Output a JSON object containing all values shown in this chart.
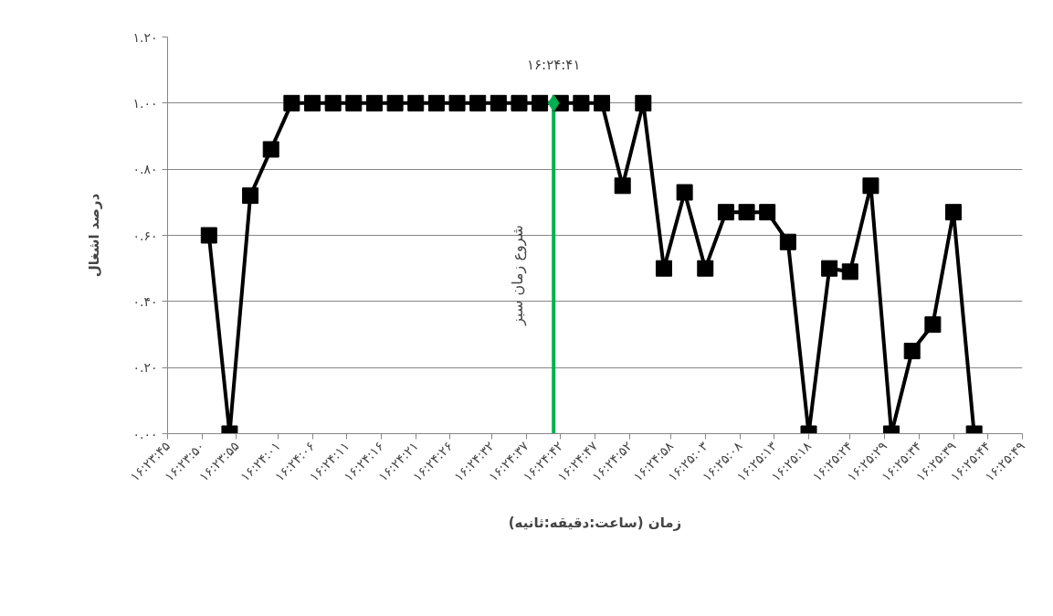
{
  "chart_data": {
    "type": "line",
    "xlabel": "زمان (ساعت:دقیقه:ثانیه)",
    "ylabel": "درصد اشغال",
    "x": [
      16.3975,
      16.398333,
      16.399167,
      16.4,
      16.400833,
      16.401667,
      16.4025,
      16.403333,
      16.404167,
      16.405,
      16.405833,
      16.406667,
      16.4075,
      16.408333,
      16.409167,
      16.41,
      16.410833,
      16.411667,
      16.4125,
      16.413333,
      16.414167,
      16.415,
      16.415833,
      16.416667,
      16.4175,
      16.418333,
      16.419167,
      16.42,
      16.420833,
      16.421667,
      16.4225,
      16.423333,
      16.424167,
      16.425,
      16.425833,
      16.426667,
      16.4275,
      16.428333
    ],
    "series": [
      {
        "color": "#000000",
        "values": [
          0.6,
          0.0,
          0.72,
          0.86,
          1.0,
          1.0,
          1.0,
          1.0,
          1.0,
          1.0,
          1.0,
          1.0,
          1.0,
          1.0,
          1.0,
          1.0,
          1.0,
          1.0,
          1.0,
          1.0,
          0.75,
          1.0,
          0.5,
          0.73,
          0.5,
          0.67,
          0.67,
          0.67,
          0.58,
          0.0,
          0.5,
          0.49,
          0.75,
          0.0,
          0.25,
          0.33,
          0.67,
          0.0
        ]
      }
    ],
    "xlim": [
      16.395833,
      16.430278
    ],
    "xticks": [
      {
        "value": 16.395833,
        "label": "۱۶:۲۳:۴۵"
      },
      {
        "value": 16.397222,
        "label": "۱۶:۲۳:۵۰"
      },
      {
        "value": 16.398611,
        "label": "۱۶:۲۳:۵۵"
      },
      {
        "value": 16.400278,
        "label": "۱۶:۲۴:۰۱"
      },
      {
        "value": 16.401667,
        "label": "۱۶:۲۴:۰۶"
      },
      {
        "value": 16.403056,
        "label": "۱۶:۲۴:۱۱"
      },
      {
        "value": 16.404444,
        "label": "۱۶:۲۴:۱۶"
      },
      {
        "value": 16.405833,
        "label": "۱۶:۲۴:۲۱"
      },
      {
        "value": 16.407222,
        "label": "۱۶:۲۴:۲۶"
      },
      {
        "value": 16.408889,
        "label": "۱۶:۲۴:۳۲"
      },
      {
        "value": 16.410278,
        "label": "۱۶:۲۴:۳۷"
      },
      {
        "value": 16.411667,
        "label": "۱۶:۲۴:۴۲"
      },
      {
        "value": 16.413056,
        "label": "۱۶:۲۴:۴۷"
      },
      {
        "value": 16.414444,
        "label": "۱۶:۲۴:۵۲"
      },
      {
        "value": 16.416111,
        "label": "۱۶:۲۴:۵۸"
      },
      {
        "value": 16.4175,
        "label": "۱۶:۲۵:۰۳"
      },
      {
        "value": 16.418889,
        "label": "۱۶:۲۵:۰۸"
      },
      {
        "value": 16.420278,
        "label": "۱۶:۲۵:۱۳"
      },
      {
        "value": 16.421667,
        "label": "۱۶:۲۵:۱۸"
      },
      {
        "value": 16.423333,
        "label": "۱۶:۲۵:۲۴"
      },
      {
        "value": 16.424722,
        "label": "۱۶:۲۵:۲۹"
      },
      {
        "value": 16.426111,
        "label": "۱۶:۲۵:۳۴"
      },
      {
        "value": 16.4275,
        "label": "۱۶:۲۵:۳۹"
      },
      {
        "value": 16.428889,
        "label": "۱۶:۲۵:۴۴"
      },
      {
        "value": 16.430278,
        "label": "۱۶:۲۵:۴۹"
      }
    ],
    "ylim": [
      0,
      1.2
    ],
    "yticks": [
      {
        "value": 0,
        "label": "۰.۰۰"
      },
      {
        "value": 0.2,
        "label": "۰.۲۰"
      },
      {
        "value": 0.4,
        "label": "۰.۴۰"
      },
      {
        "value": 0.6,
        "label": "۰.۶۰"
      },
      {
        "value": 0.8,
        "label": "۰.۸۰"
      },
      {
        "value": 1.0,
        "label": "۱.۰۰"
      },
      {
        "value": 1.2,
        "label": "۱.۲۰"
      }
    ],
    "ref_lines": [
      {
        "axis": "x",
        "value": 16.411389,
        "label": "شروع زمان سبز",
        "color": "#00b050"
      }
    ],
    "annotations": [
      {
        "text": "۱۶:۲۴:۴۱",
        "x": 16.411389,
        "y": 1.0
      }
    ],
    "grid": "y",
    "marker": "square",
    "line_style": "solid"
  }
}
